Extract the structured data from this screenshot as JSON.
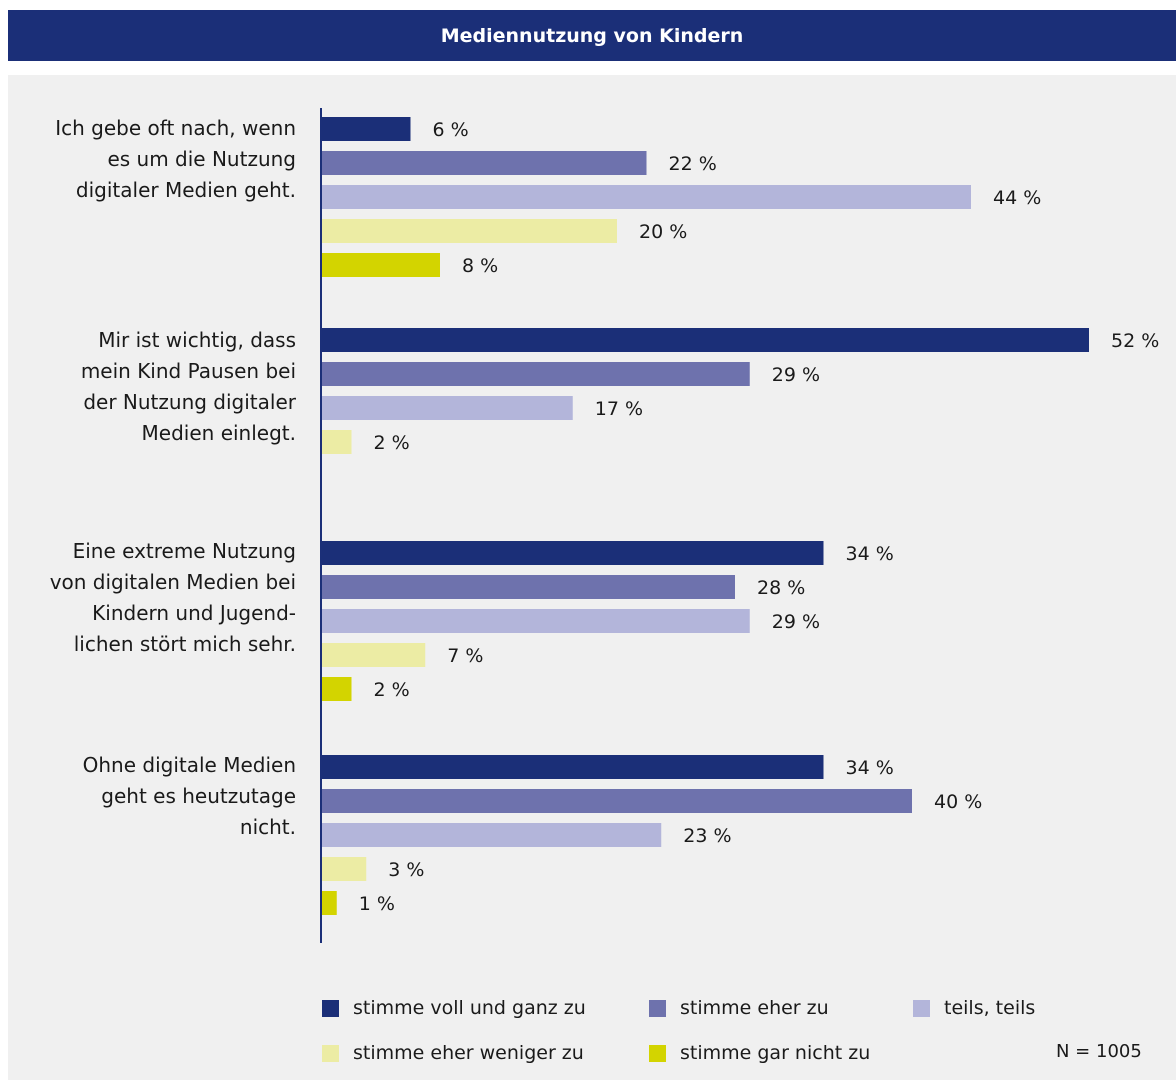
{
  "title": "Mediennutzung von Kindern",
  "note": "N = 1005",
  "colors": {
    "header_bg": "#1b2f78",
    "panel_bg": "#f0f0f0",
    "series": [
      "#1b2f78",
      "#6e72ad",
      "#b3b5da",
      "#ececa4",
      "#d3d400"
    ]
  },
  "chart_data": {
    "type": "bar",
    "orientation": "horizontal",
    "title": "Mediennutzung von Kindern",
    "value_suffix": " %",
    "categories": [
      "Ich gebe oft nach, wenn es um die Nutzung digitaler Medien geht.",
      "Mir ist wichtig, dass mein Kind Pausen bei der Nutzung digitaler Medien einlegt.",
      "Eine extreme Nutzung von digitalen Medien bei Kindern und Jugendlichen stört mich sehr.",
      "Ohne digitale Medien geht es heutzutage nicht."
    ],
    "category_lines": [
      [
        "Ich gebe oft nach, wenn",
        "es um die Nutzung",
        "digitaler Medien geht."
      ],
      [
        "Mir ist wichtig, dass",
        "mein Kind Pausen bei",
        "der Nutzung digitaler",
        "Medien einlegt."
      ],
      [
        "Eine extreme Nutzung",
        "von digitalen Medien bei",
        "Kindern und Jugend-",
        "lichen stört mich sehr."
      ],
      [
        "Ohne digitale Medien",
        "geht es heutzutage",
        "nicht."
      ]
    ],
    "series": [
      {
        "name": "stimme voll und ganz zu",
        "values": [
          6,
          52,
          34,
          34
        ]
      },
      {
        "name": "stimme eher zu",
        "values": [
          22,
          29,
          28,
          40
        ]
      },
      {
        "name": "teils, teils",
        "values": [
          44,
          17,
          29,
          23
        ]
      },
      {
        "name": "stimme eher weniger zu",
        "values": [
          20,
          2,
          7,
          3
        ]
      },
      {
        "name": "stimme gar nicht zu",
        "values": [
          8,
          null,
          2,
          1
        ]
      }
    ],
    "legend_position": "bottom",
    "grid": false
  }
}
